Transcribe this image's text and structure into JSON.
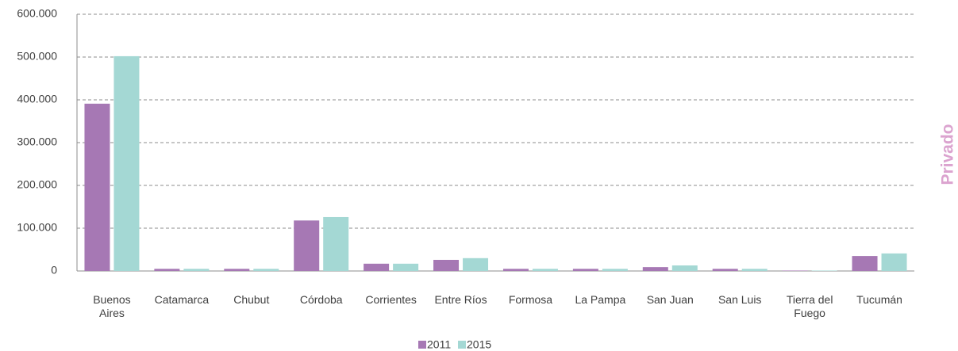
{
  "chart_data": {
    "type": "bar",
    "side_label": "Privado",
    "categories": [
      "Buenos Aires",
      "Catamarca",
      "Chubut",
      "Córdoba",
      "Corrientes",
      "Entre Ríos",
      "Formosa",
      "La Pampa",
      "San Juan",
      "San Luis",
      "Tierra del Fuego",
      "Tucumán"
    ],
    "series": [
      {
        "name": "2011",
        "color": "#a678b4",
        "values": [
          391000,
          5000,
          5000,
          118000,
          17000,
          26000,
          5000,
          5000,
          9000,
          5000,
          1000,
          35000
        ]
      },
      {
        "name": "2015",
        "color": "#a4d8d4",
        "values": [
          502000,
          5000,
          5000,
          126000,
          17000,
          30000,
          5000,
          5000,
          13000,
          5000,
          1000,
          41000
        ]
      }
    ],
    "ylim": [
      0,
      600000
    ],
    "yticks": [
      0,
      {
        "value": 100000,
        "label": "100.000"
      },
      {
        "value": 200000,
        "label": "200.000"
      },
      {
        "value": 300000,
        "label": "300.000"
      },
      {
        "value": 400000,
        "label": "400.000"
      },
      {
        "value": 500000,
        "label": "500.000"
      },
      {
        "value": 600000,
        "label": "600.000"
      }
    ],
    "grid": true,
    "legend": "bottom"
  }
}
